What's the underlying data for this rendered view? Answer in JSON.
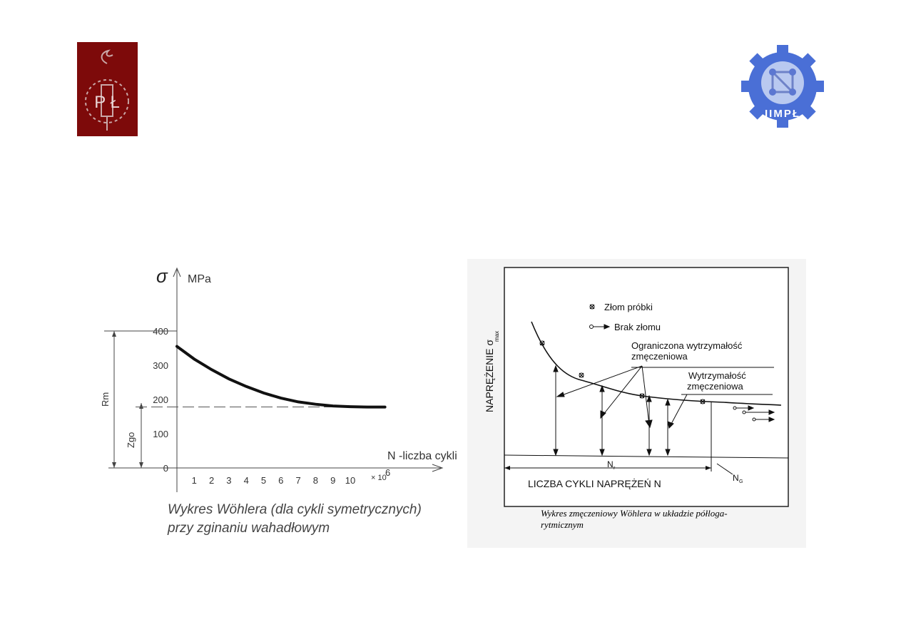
{
  "logos": {
    "left_text": "P Ł",
    "right_text": "IIMPŁ",
    "left_color": "#7d0a0a",
    "right_color": "#4a6fd6"
  },
  "chart_data": [
    {
      "type": "line",
      "title": "",
      "ylabel_symbol": "σ",
      "yunit": "MPa",
      "xlabel": "N -liczba cykli",
      "x_multiplier": "× 10",
      "x_multiplier_exp": "6",
      "xticks": [
        "1",
        "2",
        "3",
        "4",
        "5",
        "6",
        "7",
        "8",
        "9",
        "10"
      ],
      "yticks": [
        "0",
        "100",
        "200",
        "300",
        "400"
      ],
      "ylim": [
        0,
        400
      ],
      "xlim": [
        0,
        12
      ],
      "series": [
        {
          "x": [
            0,
            1,
            2,
            3,
            4,
            5,
            6,
            7,
            8,
            9,
            10,
            11,
            12
          ],
          "y": [
            355,
            318,
            287,
            260,
            238,
            219,
            204,
            193,
            186,
            181,
            179,
            178,
            178
          ]
        }
      ],
      "annotations": {
        "rm_label": "Rm",
        "rm_value": 380,
        "zgo_label": "Zgo",
        "zgo_value": 178
      },
      "caption_line1": "Wykres Wöhlera (dla cykli symetrycznych)",
      "caption_line2": "przy zginaniu wahadłowym"
    },
    {
      "type": "scatter",
      "ylabel": "NAPRĘŻENIE σ",
      "ylabel_sub": "max",
      "xlabel": "LICZBA CYKLI NAPRĘŻEŃ  N",
      "legend": [
        {
          "marker": "cross",
          "label": "Złom próbki"
        },
        {
          "marker": "arrow",
          "label": "Brak złomu"
        }
      ],
      "annotation_limited_1": "Ograniczona wytrzymałość",
      "annotation_limited_2": "zmęczeniowa",
      "annotation_fatigue_1": "Wytrzymałość",
      "annotation_fatigue_2": "zmęczeniowa",
      "nr_label": "N",
      "nr_sub": "r",
      "ng_label": "N",
      "ng_sub": "G",
      "caption_line1": "Wykres zmęczeniowy Wöhlera w układzie półloga-",
      "caption_line2": "rytmicznym"
    }
  ]
}
